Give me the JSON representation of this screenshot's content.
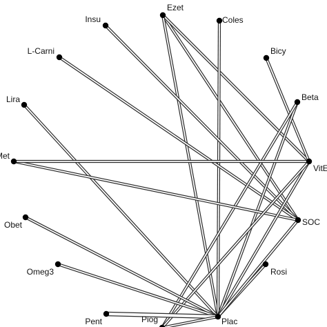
{
  "diagram": {
    "type": "network-graph",
    "colors": {
      "edge_outer": "#2a2a2a",
      "edge_inner": "#ffffff",
      "node": "#000000",
      "text": "#111111"
    },
    "nodes": [
      {
        "id": "Ezet",
        "label": "Ezet"
      },
      {
        "id": "Coles",
        "label": "Coles"
      },
      {
        "id": "Insu",
        "label": "Insu"
      },
      {
        "id": "L-Carni",
        "label": "L-Carni"
      },
      {
        "id": "Bicy",
        "label": "Bicy"
      },
      {
        "id": "Lira",
        "label": "Lira"
      },
      {
        "id": "Beta",
        "label": "Beta"
      },
      {
        "id": "Met",
        "label": "Met"
      },
      {
        "id": "VitE",
        "label": "VitE"
      },
      {
        "id": "Obet",
        "label": "Obet"
      },
      {
        "id": "SOC",
        "label": "SOC"
      },
      {
        "id": "Omeg3",
        "label": "Omeg3"
      },
      {
        "id": "Rosi",
        "label": "Rosi"
      },
      {
        "id": "Pent",
        "label": "Pent"
      },
      {
        "id": "Plac",
        "label": "Plac"
      },
      {
        "id": "Piog",
        "label": "Piog"
      }
    ],
    "edges": [
      {
        "from": "Ezet",
        "to": "SOC",
        "weight": 1
      },
      {
        "from": "Ezet",
        "to": "VitE",
        "weight": 1
      },
      {
        "from": "Ezet",
        "to": "Plac",
        "weight": 1
      },
      {
        "from": "Coles",
        "to": "Plac",
        "weight": 1
      },
      {
        "from": "Insu",
        "to": "SOC",
        "weight": 1
      },
      {
        "from": "L-Carni",
        "to": "SOC",
        "weight": 1
      },
      {
        "from": "Bicy",
        "to": "VitE",
        "weight": 1
      },
      {
        "from": "Lira",
        "to": "Plac",
        "weight": 1
      },
      {
        "from": "Beta",
        "to": "Plac",
        "weight": 1
      },
      {
        "from": "Beta",
        "to": "Piog",
        "weight": 1
      },
      {
        "from": "Met",
        "to": "SOC",
        "weight": 1
      },
      {
        "from": "Met",
        "to": "VitE",
        "weight": 1
      },
      {
        "from": "VitE",
        "to": "Plac",
        "weight": 1
      },
      {
        "from": "VitE",
        "to": "Piog",
        "weight": 1
      },
      {
        "from": "Obet",
        "to": "Plac",
        "weight": 1
      },
      {
        "from": "Omeg3",
        "to": "Plac",
        "weight": 1
      },
      {
        "from": "Rosi",
        "to": "Plac",
        "weight": 1
      },
      {
        "from": "Pent",
        "to": "Plac",
        "weight": 2
      },
      {
        "from": "SOC",
        "to": "Plac",
        "weight": 1
      },
      {
        "from": "Piog",
        "to": "Plac",
        "weight": 1
      }
    ]
  }
}
